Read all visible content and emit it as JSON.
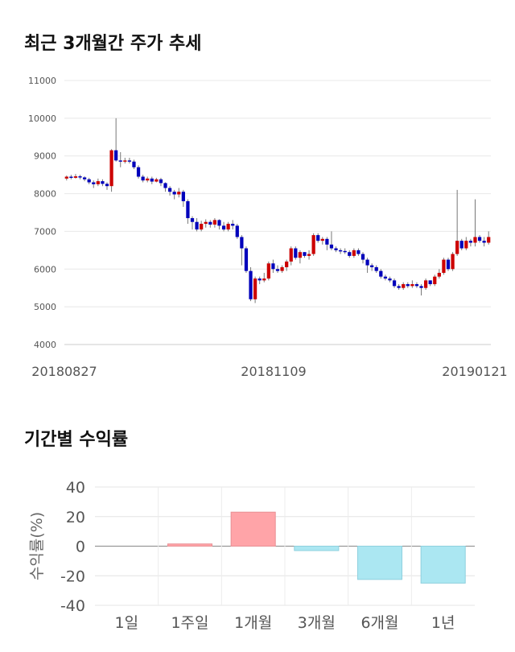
{
  "sections": {
    "price_title": "최근 3개월간 주가 추세",
    "returns_title": "기간별 수익률"
  },
  "chart_data": [
    {
      "type": "candlestick",
      "title": "최근 3개월간 주가 추세",
      "ylim": [
        4000,
        11000
      ],
      "y_ticks": [
        "11000",
        "10000",
        "9000",
        "8000",
        "7000",
        "6000",
        "5000",
        "4000"
      ],
      "x_tick_labels": [
        "20180827",
        "20181109",
        "20190121"
      ],
      "grid": true,
      "up_color": "#cc0000",
      "down_color": "#0000bb",
      "candles": [
        [
          8400,
          8450,
          8350,
          8480
        ],
        [
          8450,
          8420,
          8380,
          8500
        ],
        [
          8420,
          8460,
          8400,
          8520
        ],
        [
          8460,
          8430,
          8380,
          8500
        ],
        [
          8430,
          8380,
          8330,
          8460
        ],
        [
          8380,
          8300,
          8250,
          8420
        ],
        [
          8300,
          8250,
          8150,
          8350
        ],
        [
          8250,
          8330,
          8200,
          8400
        ],
        [
          8330,
          8260,
          8200,
          8380
        ],
        [
          8260,
          8200,
          8100,
          8300
        ],
        [
          8200,
          9150,
          8050,
          9180
        ],
        [
          9150,
          8880,
          8850,
          10000
        ],
        [
          8880,
          8850,
          8700,
          9100
        ],
        [
          8850,
          8880,
          8800,
          8950
        ],
        [
          8880,
          8850,
          8800,
          8950
        ],
        [
          8850,
          8700,
          8650,
          8900
        ],
        [
          8700,
          8450,
          8400,
          8750
        ],
        [
          8450,
          8350,
          8300,
          8500
        ],
        [
          8350,
          8400,
          8300,
          8450
        ],
        [
          8400,
          8320,
          8250,
          8450
        ],
        [
          8320,
          8380,
          8300,
          8420
        ],
        [
          8380,
          8280,
          8200,
          8420
        ],
        [
          8280,
          8150,
          8050,
          8300
        ],
        [
          8150,
          8050,
          7950,
          8200
        ],
        [
          8050,
          7980,
          7850,
          8100
        ],
        [
          7980,
          8050,
          7900,
          8150
        ],
        [
          8050,
          7800,
          7650,
          8100
        ],
        [
          7800,
          7350,
          7200,
          7850
        ],
        [
          7350,
          7250,
          7050,
          7400
        ],
        [
          7250,
          7050,
          7000,
          7350
        ],
        [
          7050,
          7200,
          7000,
          7280
        ],
        [
          7200,
          7250,
          7100,
          7320
        ],
        [
          7250,
          7180,
          7100,
          7300
        ],
        [
          7180,
          7300,
          7100,
          7350
        ],
        [
          7300,
          7150,
          7050,
          7320
        ],
        [
          7150,
          7050,
          7000,
          7250
        ],
        [
          7050,
          7200,
          7000,
          7250
        ],
        [
          7200,
          7150,
          7050,
          7300
        ],
        [
          7150,
          6850,
          6800,
          7200
        ],
        [
          6850,
          6550,
          6100,
          6900
        ],
        [
          6550,
          5950,
          5900,
          6600
        ],
        [
          5950,
          5200,
          5150,
          6050
        ],
        [
          5200,
          5750,
          5100,
          5800
        ],
        [
          5750,
          5700,
          5600,
          5800
        ],
        [
          5700,
          5750,
          5650,
          5900
        ],
        [
          5750,
          6150,
          5700,
          6200
        ],
        [
          6150,
          6000,
          5900,
          6250
        ],
        [
          6000,
          5950,
          5900,
          6100
        ],
        [
          5950,
          6050,
          5900,
          6100
        ],
        [
          6050,
          6200,
          5950,
          6250
        ],
        [
          6200,
          6550,
          6100,
          6600
        ],
        [
          6550,
          6300,
          6250,
          6600
        ],
        [
          6300,
          6450,
          6150,
          6500
        ],
        [
          6450,
          6350,
          6300,
          6450
        ],
        [
          6350,
          6400,
          6250,
          6500
        ],
        [
          6400,
          6900,
          6350,
          6950
        ],
        [
          6900,
          6750,
          6700,
          6950
        ],
        [
          6750,
          6800,
          6650,
          6850
        ],
        [
          6800,
          6650,
          6500,
          6850
        ],
        [
          6650,
          6550,
          6500,
          7000
        ],
        [
          6550,
          6500,
          6450,
          6600
        ],
        [
          6500,
          6480,
          6400,
          6550
        ],
        [
          6480,
          6450,
          6400,
          6550
        ],
        [
          6450,
          6350,
          6300,
          6500
        ],
        [
          6350,
          6500,
          6300,
          6550
        ],
        [
          6500,
          6400,
          6350,
          6550
        ],
        [
          6400,
          6250,
          6150,
          6450
        ],
        [
          6250,
          6100,
          5900,
          6300
        ],
        [
          6100,
          6050,
          5950,
          6150
        ],
        [
          6050,
          5950,
          5900,
          6100
        ],
        [
          5950,
          5800,
          5750,
          6000
        ],
        [
          5800,
          5750,
          5700,
          5850
        ],
        [
          5750,
          5700,
          5650,
          5800
        ],
        [
          5700,
          5550,
          5500,
          5750
        ],
        [
          5550,
          5500,
          5450,
          5600
        ],
        [
          5500,
          5600,
          5450,
          5650
        ],
        [
          5600,
          5550,
          5500,
          5650
        ],
        [
          5550,
          5600,
          5500,
          5700
        ],
        [
          5600,
          5550,
          5500,
          5650
        ],
        [
          5550,
          5500,
          5300,
          5600
        ],
        [
          5500,
          5700,
          5450,
          5750
        ],
        [
          5700,
          5600,
          5550,
          5700
        ],
        [
          5600,
          5800,
          5550,
          5850
        ],
        [
          5800,
          5900,
          5750,
          6000
        ],
        [
          5900,
          6250,
          5850,
          6300
        ],
        [
          6250,
          6000,
          5950,
          6300
        ],
        [
          6000,
          6400,
          5950,
          6450
        ],
        [
          6400,
          6750,
          6350,
          8100
        ],
        [
          6750,
          6550,
          6500,
          6800
        ],
        [
          6550,
          6750,
          6500,
          6850
        ],
        [
          6750,
          6700,
          6600,
          6800
        ],
        [
          6700,
          6850,
          6600,
          7850
        ],
        [
          6850,
          6750,
          6700,
          6900
        ],
        [
          6750,
          6700,
          6600,
          6850
        ],
        [
          6700,
          6850,
          6650,
          7000
        ]
      ]
    },
    {
      "type": "bar",
      "title": "기간별 수익률",
      "categories": [
        "1일",
        "1주일",
        "1개월",
        "3개월",
        "6개월",
        "1년"
      ],
      "values": [
        0,
        1.5,
        23,
        -3,
        -22.5,
        -25
      ],
      "ylabel": "수익률(%)",
      "ylim": [
        -40,
        40
      ],
      "y_ticks": [
        "40",
        "20",
        "0",
        "-20",
        "-40"
      ],
      "positive_color": "#ffa4a8",
      "negative_color": "#abe7f2",
      "grid": true
    }
  ]
}
